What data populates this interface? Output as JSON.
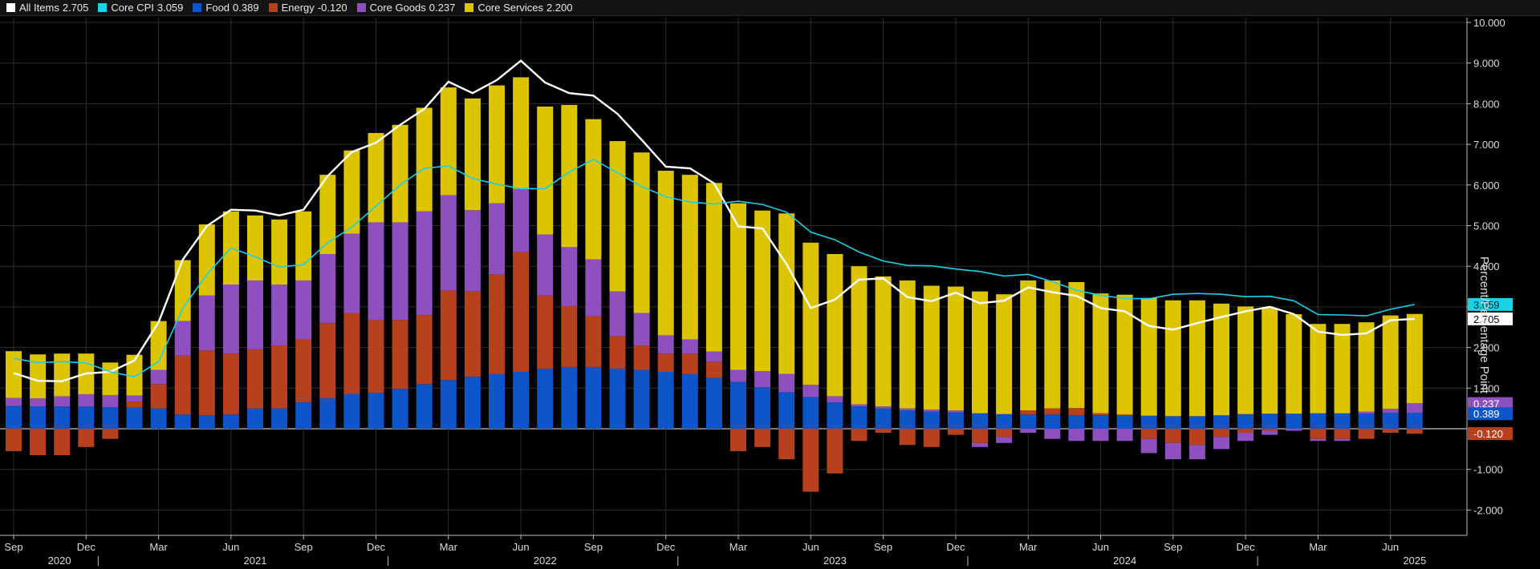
{
  "legend": [
    {
      "name": "All Items",
      "value": "2.705",
      "color": "#ffffff"
    },
    {
      "name": "Core CPI",
      "value": "3.059",
      "color": "#19d2e6"
    },
    {
      "name": "Food",
      "value": "0.389",
      "color": "#0d55c8"
    },
    {
      "name": "Energy",
      "value": "-0.120",
      "color": "#b8411d"
    },
    {
      "name": "Core Goods",
      "value": "0.237",
      "color": "#8e4fbf"
    },
    {
      "name": "Core Services",
      "value": "2.200",
      "color": "#dcc400"
    }
  ],
  "axis": {
    "y_title": "Percent/Percentage Point",
    "y_ticks": [
      "10.000",
      "9.000",
      "8.000",
      "7.000",
      "6.000",
      "5.000",
      "4.000",
      "3.000",
      "2.000",
      "1.000",
      "-1.000",
      "-2.000"
    ],
    "x_month_ticks": [
      "Sep",
      "Dec",
      "Mar",
      "Jun",
      "Sep",
      "Dec",
      "Mar",
      "Jun",
      "Sep",
      "Dec",
      "Mar",
      "Jun",
      "Sep",
      "Dec",
      "Mar",
      "Jun",
      "Sep",
      "Dec",
      "Mar",
      "Jun"
    ],
    "x_year_labels": [
      "2020",
      "2021",
      "2022",
      "2023",
      "2024",
      "2025"
    ]
  },
  "value_tags": [
    {
      "text": "3.059",
      "value": 3.059,
      "color": "#19d2e6",
      "text_color": "#00303a"
    },
    {
      "text": "2.705",
      "value": 2.705,
      "color": "#ffffff",
      "text_color": "#000000"
    },
    {
      "text": "0.237",
      "value": 0.237,
      "color": "#8e4fbf",
      "text_color": "#ffffff"
    },
    {
      "text": "0.389",
      "value": 0.389,
      "color": "#0d55c8",
      "text_color": "#ffffff"
    },
    {
      "text": "-0.120",
      "value": -0.12,
      "color": "#b8411d",
      "text_color": "#ffffff"
    }
  ],
  "chart_data": {
    "type": "bar",
    "stacked": true,
    "ylabel": "Percent/Percentage Point",
    "ylim": [
      -2.5,
      10.2
    ],
    "grid": true,
    "legend_position": "top",
    "x": [
      "2020-09",
      "2020-10",
      "2020-11",
      "2020-12",
      "2021-01",
      "2021-02",
      "2021-03",
      "2021-04",
      "2021-05",
      "2021-06",
      "2021-07",
      "2021-08",
      "2021-09",
      "2021-10",
      "2021-11",
      "2021-12",
      "2022-01",
      "2022-02",
      "2022-03",
      "2022-04",
      "2022-05",
      "2022-06",
      "2022-07",
      "2022-08",
      "2022-09",
      "2022-10",
      "2022-11",
      "2022-12",
      "2023-01",
      "2023-02",
      "2023-03",
      "2023-04",
      "2023-05",
      "2023-06",
      "2023-07",
      "2023-08",
      "2023-09",
      "2023-10",
      "2023-11",
      "2023-12",
      "2024-01",
      "2024-02",
      "2024-03",
      "2024-04",
      "2024-05",
      "2024-06",
      "2024-07",
      "2024-08",
      "2024-09",
      "2024-10",
      "2024-11",
      "2024-12",
      "2025-01",
      "2025-02",
      "2025-03",
      "2025-04",
      "2025-05",
      "2025-06",
      "2025-07"
    ],
    "series": [
      {
        "name": "Food",
        "type": "bar",
        "values": [
          0.56,
          0.55,
          0.55,
          0.55,
          0.53,
          0.52,
          0.5,
          0.35,
          0.33,
          0.35,
          0.5,
          0.5,
          0.65,
          0.75,
          0.85,
          0.88,
          0.98,
          1.1,
          1.2,
          1.28,
          1.35,
          1.4,
          1.48,
          1.52,
          1.52,
          1.48,
          1.45,
          1.4,
          1.35,
          1.25,
          1.15,
          1.02,
          0.9,
          0.78,
          0.65,
          0.55,
          0.5,
          0.45,
          0.42,
          0.4,
          0.38,
          0.36,
          0.35,
          0.35,
          0.33,
          0.33,
          0.32,
          0.32,
          0.31,
          0.31,
          0.33,
          0.36,
          0.37,
          0.37,
          0.38,
          0.38,
          0.37,
          0.39,
          0.389
        ]
      },
      {
        "name": "Energy",
        "values": [
          -0.55,
          -0.65,
          -0.65,
          -0.45,
          -0.25,
          0.15,
          0.6,
          1.45,
          1.6,
          1.5,
          1.45,
          1.55,
          1.55,
          1.85,
          2.0,
          1.8,
          1.7,
          1.7,
          2.2,
          2.1,
          2.45,
          2.95,
          1.8,
          1.5,
          1.25,
          0.8,
          0.6,
          0.45,
          0.5,
          0.4,
          -0.55,
          -0.45,
          -0.75,
          -1.55,
          -1.1,
          -0.3,
          -0.1,
          -0.4,
          -0.45,
          -0.15,
          -0.35,
          -0.2,
          0.1,
          0.15,
          0.18,
          0.05,
          0.03,
          -0.25,
          -0.35,
          -0.4,
          -0.2,
          -0.1,
          -0.05,
          0.0,
          -0.25,
          -0.25,
          -0.25,
          -0.1,
          -0.12
        ]
      },
      {
        "name": "Core Goods",
        "values": [
          0.2,
          0.2,
          0.25,
          0.3,
          0.3,
          0.15,
          0.35,
          0.85,
          1.35,
          1.7,
          1.7,
          1.5,
          1.45,
          1.7,
          1.95,
          2.4,
          2.4,
          2.55,
          2.35,
          2.0,
          1.75,
          1.55,
          1.5,
          1.45,
          1.4,
          1.1,
          0.8,
          0.45,
          0.35,
          0.25,
          0.3,
          0.4,
          0.45,
          0.3,
          0.15,
          0.05,
          0.05,
          0.05,
          0.05,
          0.05,
          -0.1,
          -0.15,
          -0.1,
          -0.25,
          -0.3,
          -0.3,
          -0.3,
          -0.35,
          -0.4,
          -0.35,
          -0.3,
          -0.2,
          -0.1,
          -0.05,
          -0.05,
          -0.05,
          0.05,
          0.1,
          0.237
        ]
      },
      {
        "name": "Core Services",
        "values": [
          1.15,
          1.08,
          1.05,
          1.0,
          0.8,
          1.0,
          1.2,
          1.5,
          1.75,
          1.8,
          1.6,
          1.6,
          1.7,
          1.95,
          2.05,
          2.2,
          2.4,
          2.55,
          2.65,
          2.75,
          2.9,
          2.75,
          3.15,
          3.5,
          3.45,
          3.7,
          3.95,
          4.05,
          4.05,
          4.15,
          4.1,
          3.95,
          3.95,
          3.5,
          3.5,
          3.4,
          3.2,
          3.15,
          3.05,
          3.05,
          3.0,
          2.95,
          3.2,
          3.15,
          3.1,
          2.95,
          2.95,
          2.9,
          2.85,
          2.85,
          2.75,
          2.65,
          2.6,
          2.45,
          2.2,
          2.2,
          2.2,
          2.3,
          2.2
        ]
      },
      {
        "name": "All Items",
        "type": "line",
        "values": [
          1.37,
          1.18,
          1.17,
          1.36,
          1.4,
          1.68,
          2.62,
          4.16,
          4.99,
          5.39,
          5.37,
          5.25,
          5.39,
          6.22,
          6.81,
          7.04,
          7.48,
          7.87,
          8.54,
          8.26,
          8.58,
          9.06,
          8.52,
          8.26,
          8.2,
          7.75,
          7.11,
          6.45,
          6.41,
          6.04,
          4.98,
          4.93,
          4.05,
          2.97,
          3.18,
          3.67,
          3.7,
          3.24,
          3.14,
          3.35,
          3.09,
          3.15,
          3.48,
          3.36,
          3.27,
          2.97,
          2.89,
          2.53,
          2.44,
          2.6,
          2.75,
          2.89,
          3.0,
          2.82,
          2.39,
          2.31,
          2.35,
          2.67,
          2.705
        ]
      },
      {
        "name": "Core CPI",
        "type": "line",
        "values": [
          1.73,
          1.63,
          1.65,
          1.62,
          1.4,
          1.28,
          1.65,
          2.96,
          3.8,
          4.45,
          4.23,
          3.98,
          4.04,
          4.58,
          4.96,
          5.48,
          6.0,
          6.41,
          6.47,
          6.16,
          6.02,
          5.91,
          5.91,
          6.32,
          6.63,
          6.3,
          5.96,
          5.71,
          5.58,
          5.53,
          5.6,
          5.52,
          5.33,
          4.84,
          4.65,
          4.35,
          4.13,
          4.02,
          4.01,
          3.93,
          3.87,
          3.76,
          3.8,
          3.62,
          3.41,
          3.28,
          3.21,
          3.2,
          3.31,
          3.33,
          3.31,
          3.25,
          3.26,
          3.15,
          2.81,
          2.8,
          2.78,
          2.94,
          3.059
        ]
      }
    ]
  }
}
